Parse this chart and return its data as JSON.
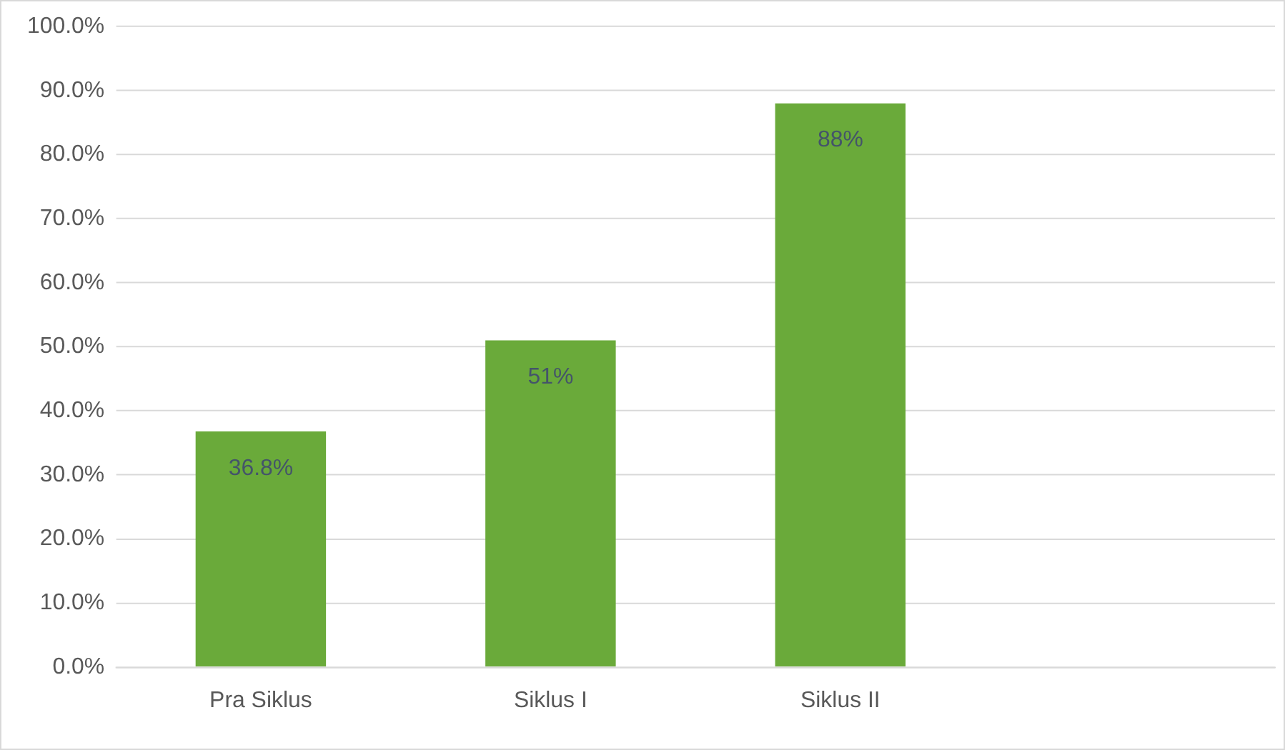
{
  "chart_data": {
    "type": "bar",
    "categories": [
      "Pra Siklus",
      "Siklus I",
      "Siklus II",
      null
    ],
    "values": [
      36.8,
      51,
      88,
      null
    ],
    "color": "#6aaa3a",
    "value_labels": [
      "36.8%",
      "51%",
      "88%",
      null
    ],
    "ylim": [
      0,
      100
    ],
    "yticks": [
      {
        "value": 0,
        "label": "0.0%"
      },
      {
        "value": 10,
        "label": "10.0%"
      },
      {
        "value": 20,
        "label": "20.0%"
      },
      {
        "value": 30,
        "label": "30.0%"
      },
      {
        "value": 40,
        "label": "40.0%"
      },
      {
        "value": 50,
        "label": "50.0%"
      },
      {
        "value": 60,
        "label": "60.0%"
      },
      {
        "value": 70,
        "label": "70.0%"
      },
      {
        "value": 80,
        "label": "80.0%"
      },
      {
        "value": 90,
        "label": "90.0%"
      },
      {
        "value": 100,
        "label": "100.0%"
      }
    ],
    "grid": "y",
    "legend": false
  }
}
